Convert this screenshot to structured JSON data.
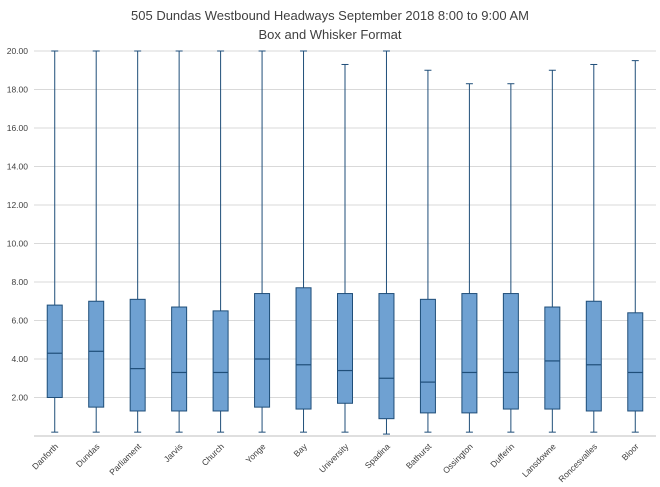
{
  "chart_data": {
    "type": "boxplot",
    "title": "505 Dundas Westbound Headways September 2018 8:00 to 9:00 AM",
    "subtitle": "Box and Whisker Format",
    "ylim": [
      0,
      20
    ],
    "ytick_step": 2,
    "ytick_labels": [
      "2.00",
      "4.00",
      "6.00",
      "8.00",
      "10.00",
      "12.00",
      "14.00",
      "16.00",
      "18.00",
      "20.00"
    ],
    "grid": true,
    "legend": "none",
    "categories": [
      "Danforth",
      "Dundas",
      "Parliament",
      "Jarvis",
      "Church",
      "Yonge",
      "Bay",
      "University",
      "Spadina",
      "Bathurst",
      "Ossington",
      "Dufferin",
      "Lansdowne",
      "Roncesvalles",
      "Bloor"
    ],
    "series": [
      {
        "name": "Danforth",
        "min": 0.2,
        "q1": 2.0,
        "median": 4.3,
        "q3": 6.8,
        "max": 20.0
      },
      {
        "name": "Dundas",
        "min": 0.2,
        "q1": 1.5,
        "median": 4.4,
        "q3": 7.0,
        "max": 20.0
      },
      {
        "name": "Parliament",
        "min": 0.2,
        "q1": 1.3,
        "median": 3.5,
        "q3": 7.1,
        "max": 20.0
      },
      {
        "name": "Jarvis",
        "min": 0.2,
        "q1": 1.3,
        "median": 3.3,
        "q3": 6.7,
        "max": 20.0
      },
      {
        "name": "Church",
        "min": 0.2,
        "q1": 1.3,
        "median": 3.3,
        "q3": 6.5,
        "max": 20.0
      },
      {
        "name": "Yonge",
        "min": 0.2,
        "q1": 1.5,
        "median": 4.0,
        "q3": 7.4,
        "max": 20.0
      },
      {
        "name": "Bay",
        "min": 0.2,
        "q1": 1.4,
        "median": 3.7,
        "q3": 7.7,
        "max": 20.0
      },
      {
        "name": "University",
        "min": 0.2,
        "q1": 1.7,
        "median": 3.4,
        "q3": 7.4,
        "max": 19.3
      },
      {
        "name": "Spadina",
        "min": 0.1,
        "q1": 0.9,
        "median": 3.0,
        "q3": 7.4,
        "max": 20.0
      },
      {
        "name": "Bathurst",
        "min": 0.2,
        "q1": 1.2,
        "median": 2.8,
        "q3": 7.1,
        "max": 19.0
      },
      {
        "name": "Ossington",
        "min": 0.2,
        "q1": 1.2,
        "median": 3.3,
        "q3": 7.4,
        "max": 18.3
      },
      {
        "name": "Dufferin",
        "min": 0.2,
        "q1": 1.4,
        "median": 3.3,
        "q3": 7.4,
        "max": 18.3
      },
      {
        "name": "Lansdowne",
        "min": 0.2,
        "q1": 1.4,
        "median": 3.9,
        "q3": 6.7,
        "max": 19.0
      },
      {
        "name": "Roncesvalles",
        "min": 0.2,
        "q1": 1.3,
        "median": 3.7,
        "q3": 7.0,
        "max": 19.3
      },
      {
        "name": "Bloor",
        "min": 0.2,
        "q1": 1.3,
        "median": 3.3,
        "q3": 6.4,
        "max": 19.5
      }
    ],
    "colors": {
      "box_fill": "#6fa1d2",
      "box_border": "#1f4e79",
      "whisker": "#1f4e79",
      "median": "#1f4e79",
      "gridline": "#d9d9d9",
      "axis_line": "#bfbfbf",
      "axis_text": "#404040",
      "title_text": "#3f3f3f"
    }
  }
}
